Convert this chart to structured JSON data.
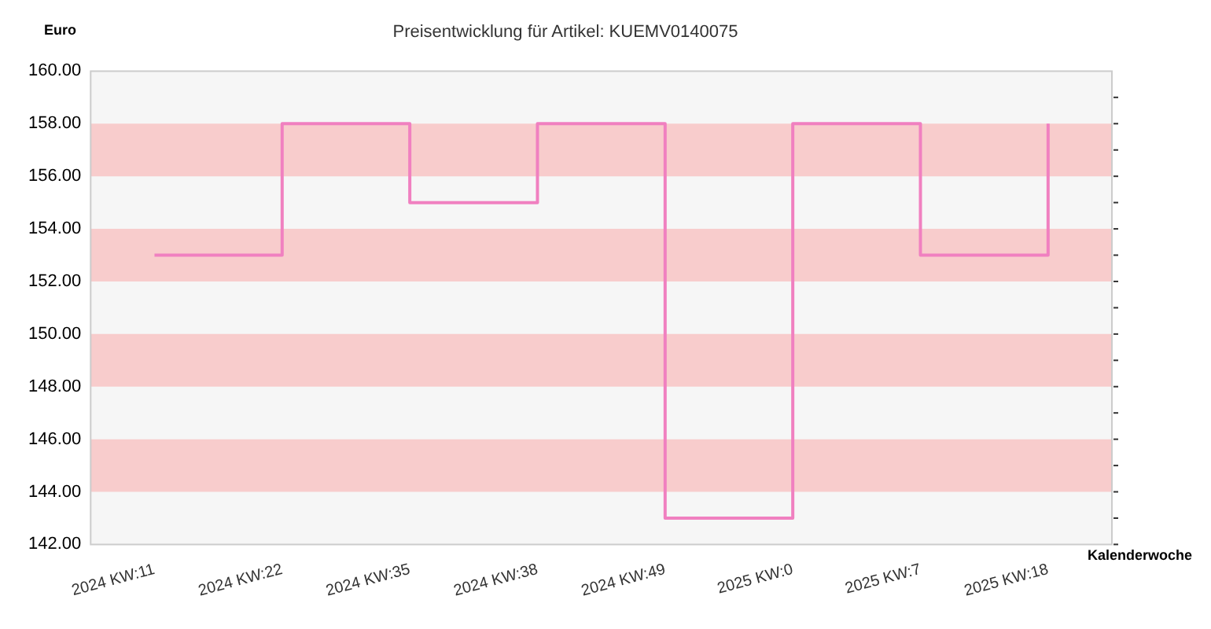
{
  "chart_data": {
    "type": "step",
    "title": "Preisentwicklung für Artikel: KUEMV0140075",
    "ylabel": "Euro",
    "xlabel": "Kalenderwoche",
    "categories": [
      "2024 KW:11",
      "2024 KW:22",
      "2024 KW:35",
      "2024 KW:38",
      "2024 KW:49",
      "2025 KW:0",
      "2025 KW:7",
      "2025 KW:18"
    ],
    "series": [
      {
        "color": "#f080c0",
        "values": [
          153,
          158,
          155,
          158,
          143,
          158,
          153,
          158
        ]
      }
    ],
    "ylim": [
      142,
      160
    ],
    "yticks": [
      {
        "value": 142,
        "label": "142.00"
      },
      {
        "value": 144,
        "label": "144.00"
      },
      {
        "value": 146,
        "label": "146.00"
      },
      {
        "value": 148,
        "label": "148.00"
      },
      {
        "value": 150,
        "label": "150.00"
      },
      {
        "value": 152,
        "label": "152.00"
      },
      {
        "value": 154,
        "label": "154.00"
      },
      {
        "value": 156,
        "label": "156.00"
      },
      {
        "value": 158,
        "label": "158.00"
      },
      {
        "value": 160,
        "label": "160.00"
      }
    ],
    "bands": [
      {
        "axis": "y",
        "from": 144,
        "to": 146,
        "color": "#f8cccc"
      },
      {
        "axis": "y",
        "from": 148,
        "to": 150,
        "color": "#f8cccc"
      },
      {
        "axis": "y",
        "from": 152,
        "to": 154,
        "color": "#f8cccc"
      },
      {
        "axis": "y",
        "from": 156,
        "to": 158,
        "color": "#f8cccc"
      }
    ],
    "grid": false,
    "legend": false,
    "marker": "none",
    "line_style": "solid"
  }
}
